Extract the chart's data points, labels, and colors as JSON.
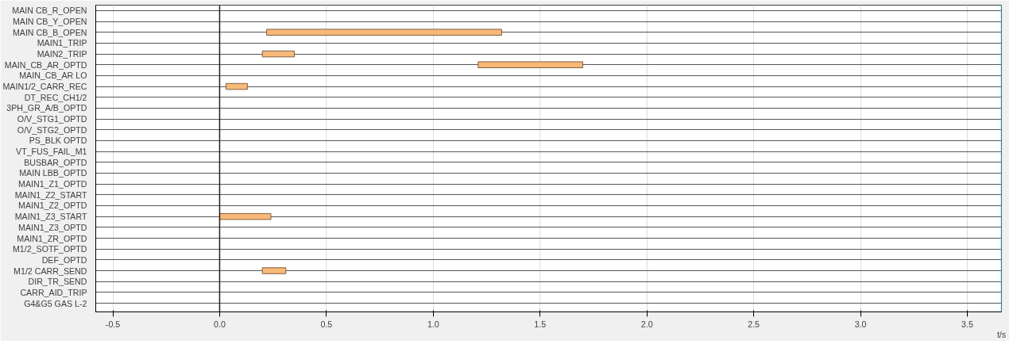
{
  "chart_data": {
    "type": "bar",
    "orientation": "horizontal",
    "xlabel": "t/s",
    "categories": [
      "MAIN CB_R_OPEN",
      "MAIN CB_Y_OPEN",
      "MAIN CB_B_OPEN",
      "MAIN1_TRIP",
      "MAIN2_TRIP",
      "MAIN_CB_AR_OPTD",
      "MAIN_CB_AR LO",
      "MAIN1/2_CARR_REC",
      "DT_REC_CH1/2",
      "3PH_GR_A/B_OPTD",
      "O/V_STG1_OPTD",
      "O/V_STG2_OPTD",
      "PS_BLK OPTD",
      "VT_FUS_FAIL_M1",
      "BUSBAR_OPTD",
      "MAIN LBB_OPTD",
      "MAIN1_Z1_OPTD",
      "MAIN1_Z2_START",
      "MAIN1_Z2_OPTD",
      "MAIN1_Z3_START",
      "MAIN1_Z3_OPTD",
      "MAIN1_ZR_OPTD",
      "M1/2_SOTF_OPTD",
      "DEF_OPTD",
      "M1/2 CARR_SEND",
      "DIR_TR_SEND",
      "CARR_AID_TRIP",
      "G4&G5 GAS L-2"
    ],
    "base": [
      null,
      null,
      0.22,
      null,
      0.2,
      1.21,
      null,
      0.03,
      null,
      null,
      null,
      null,
      null,
      null,
      null,
      null,
      null,
      null,
      null,
      0.0,
      null,
      null,
      null,
      null,
      0.2,
      null,
      null,
      null
    ],
    "values": [
      null,
      null,
      1.1,
      null,
      0.15,
      0.49,
      null,
      0.1,
      null,
      null,
      null,
      null,
      null,
      null,
      null,
      null,
      null,
      null,
      null,
      0.24,
      null,
      null,
      null,
      null,
      0.11,
      null,
      null,
      null
    ],
    "color": "#f8b878",
    "xlim": [
      -0.58,
      3.66
    ],
    "xticks": [
      {
        "value": -0.5,
        "label": "-0.5"
      },
      {
        "value": 0,
        "label": "0.0"
      },
      {
        "value": 0.5,
        "label": "0.5"
      },
      {
        "value": 1,
        "label": "1.0"
      },
      {
        "value": 1.5,
        "label": "1.5"
      },
      {
        "value": 2,
        "label": "2.0"
      },
      {
        "value": 2.5,
        "label": "2.5"
      },
      {
        "value": 3,
        "label": "3.0"
      },
      {
        "value": 3.5,
        "label": "3.5"
      }
    ],
    "ref_lines": [
      {
        "axis": "x",
        "value": 0,
        "color": "#202020"
      },
      {
        "axis": "x",
        "value": 3.66,
        "color": "#30c0d0"
      }
    ],
    "grid": true
  }
}
